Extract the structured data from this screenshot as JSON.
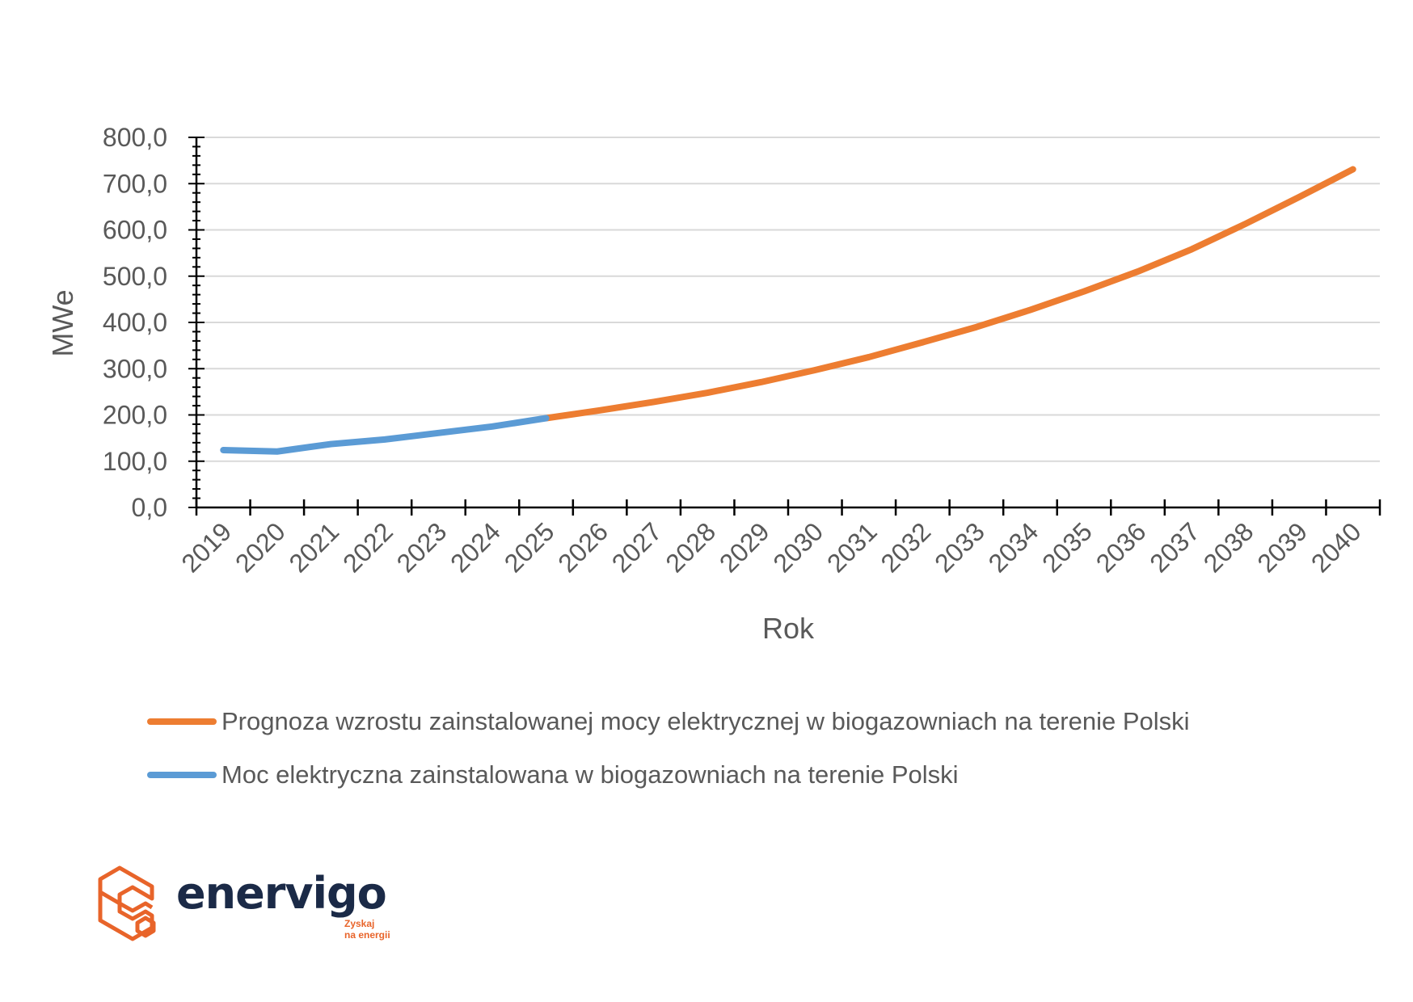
{
  "chart_data": {
    "type": "line",
    "xlabel": "Rok",
    "ylabel": "MWe",
    "ylim": [
      0,
      800
    ],
    "y_ticks": [
      "0,0",
      "100,0",
      "200,0",
      "300,0",
      "400,0",
      "500,0",
      "600,0",
      "700,0",
      "800,0"
    ],
    "categories": [
      "2019",
      "2020",
      "2021",
      "2022",
      "2023",
      "2024",
      "2025",
      "2026",
      "2027",
      "2028",
      "2029",
      "2030",
      "2031",
      "2032",
      "2033",
      "2034",
      "2035",
      "2036",
      "2037",
      "2038",
      "2039",
      "2040"
    ],
    "grid": true,
    "legend_position": "bottom",
    "series": [
      {
        "name": "Prognoza wzrostu zainstalowanej mocy elektrycznej w biogazowniach na terenie Polski",
        "color": "#ed7d31",
        "values": [
          null,
          null,
          null,
          null,
          null,
          null,
          193,
          210,
          228,
          248,
          271,
          297,
          325,
          357,
          390,
          427,
          467,
          510,
          558,
          613,
          671,
          731
        ]
      },
      {
        "name": "Moc elektryczna zainstalowana w biogazowniach na terenie Polski",
        "color": "#5b9bd5",
        "values": [
          124,
          121,
          137,
          147,
          161,
          175,
          193,
          null,
          null,
          null,
          null,
          null,
          null,
          null,
          null,
          null,
          null,
          null,
          null,
          null,
          null,
          null
        ]
      }
    ]
  },
  "logo": {
    "wordmark": "enervigo",
    "tagline_line1": "Zyskaj",
    "tagline_line2": "na energii",
    "orange": "#e8642a",
    "navy": "#1b2a47"
  }
}
